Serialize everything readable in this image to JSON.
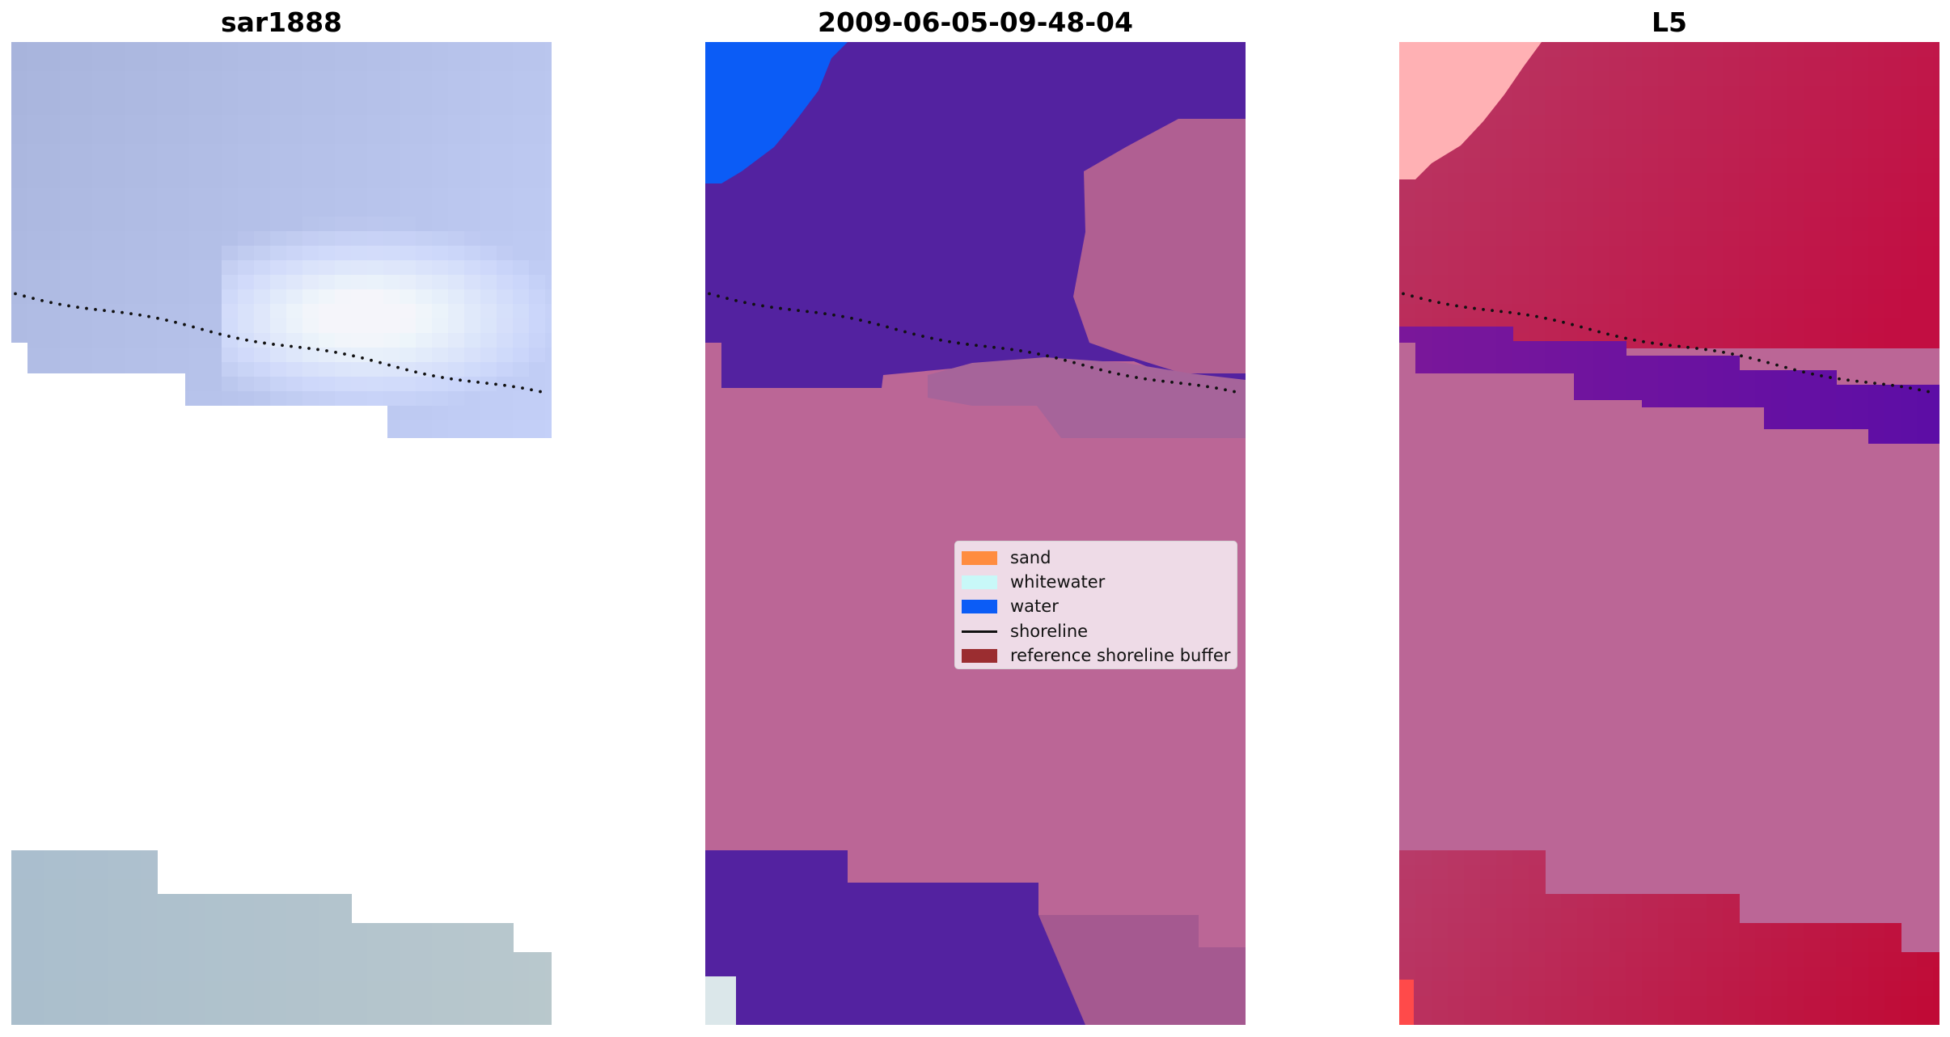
{
  "panels": [
    {
      "title": "sar1888",
      "mode": "rgb"
    },
    {
      "title": "2009-06-05-09-48-04",
      "mode": "classified"
    },
    {
      "title": "L5",
      "mode": "index"
    }
  ],
  "legend": {
    "items": [
      {
        "label": "sand",
        "kind": "patch",
        "color": "#ff8c3f"
      },
      {
        "label": "whitewater",
        "kind": "patch",
        "color": "#c8f8f8"
      },
      {
        "label": "water",
        "kind": "patch",
        "color": "#0b5cf6"
      },
      {
        "label": "shoreline",
        "kind": "line",
        "color": "#111111"
      },
      {
        "label": "reference shoreline buffer",
        "kind": "patch",
        "color": "#9b2d30"
      }
    ]
  },
  "colors": {
    "background": "#ffffff",
    "rgb_sky": "#a8b4d8",
    "rgb_cloud": "#edf1f8",
    "classified_water": "#5322a0",
    "classified_blue": "#0b5cf6",
    "buffer_pink": "#bb6696",
    "index_red": "#c0144e",
    "index_purple": "#5b0fa6",
    "shoreline": "#111111"
  }
}
